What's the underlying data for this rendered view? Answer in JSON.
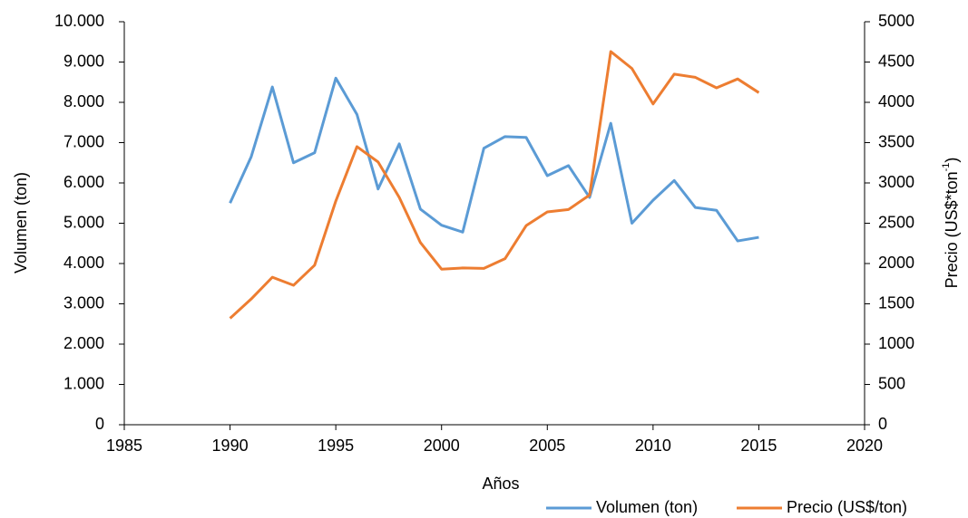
{
  "chart_data": {
    "type": "line",
    "xlabel": "Años",
    "ylabel": "Volumen (ton)",
    "y2label": [
      "Precio (US$*ton",
      "-1",
      ")"
    ],
    "x": [
      1990,
      1991,
      1992,
      1993,
      1994,
      1995,
      1996,
      1997,
      1998,
      1999,
      2000,
      2001,
      2002,
      2003,
      2004,
      2005,
      2006,
      2007,
      2008,
      2009,
      2010,
      2011,
      2012,
      2013,
      2014,
      2015
    ],
    "series": [
      {
        "name": "Volumen (ton)",
        "color": "#5b9bd5",
        "axis": "y",
        "values": [
          5500,
          6650,
          8380,
          6500,
          6750,
          8600,
          7700,
          5850,
          6970,
          5350,
          4950,
          4780,
          6860,
          7150,
          7130,
          6180,
          6430,
          5640,
          7480,
          5000,
          5570,
          6060,
          5390,
          5320,
          4560,
          4650
        ]
      },
      {
        "name": "Precio (US$/ton)",
        "color": "#ed7d31",
        "axis": "y2",
        "values": [
          1320,
          1560,
          1830,
          1730,
          1980,
          2775,
          3450,
          3260,
          2820,
          2260,
          1930,
          1945,
          1940,
          2060,
          2470,
          2640,
          2670,
          2850,
          4630,
          4420,
          3980,
          4350,
          4310,
          4180,
          4290,
          4120
        ]
      }
    ],
    "xlim": [
      1985,
      2020
    ],
    "xticks": [
      1985,
      1990,
      1995,
      2000,
      2005,
      2010,
      2015,
      2020
    ],
    "ylim": [
      0,
      10000
    ],
    "yticks": [
      0,
      {
        "value": 1000,
        "label": "1.000"
      },
      {
        "value": 2000,
        "label": "2.000"
      },
      {
        "value": 3000,
        "label": "3.000"
      },
      {
        "value": 4000,
        "label": "4.000"
      },
      {
        "value": 5000,
        "label": "5.000"
      },
      {
        "value": 6000,
        "label": "6.000"
      },
      {
        "value": 7000,
        "label": "7.000"
      },
      {
        "value": 8000,
        "label": "8.000"
      },
      {
        "value": 9000,
        "label": "9.000"
      },
      {
        "value": 10000,
        "label": "10.000"
      }
    ],
    "y2lim": [
      0,
      5000
    ],
    "y2ticks": [
      0,
      500,
      1000,
      1500,
      2000,
      2500,
      3000,
      3500,
      4000,
      4500,
      5000
    ],
    "legend": "bottom-right"
  }
}
